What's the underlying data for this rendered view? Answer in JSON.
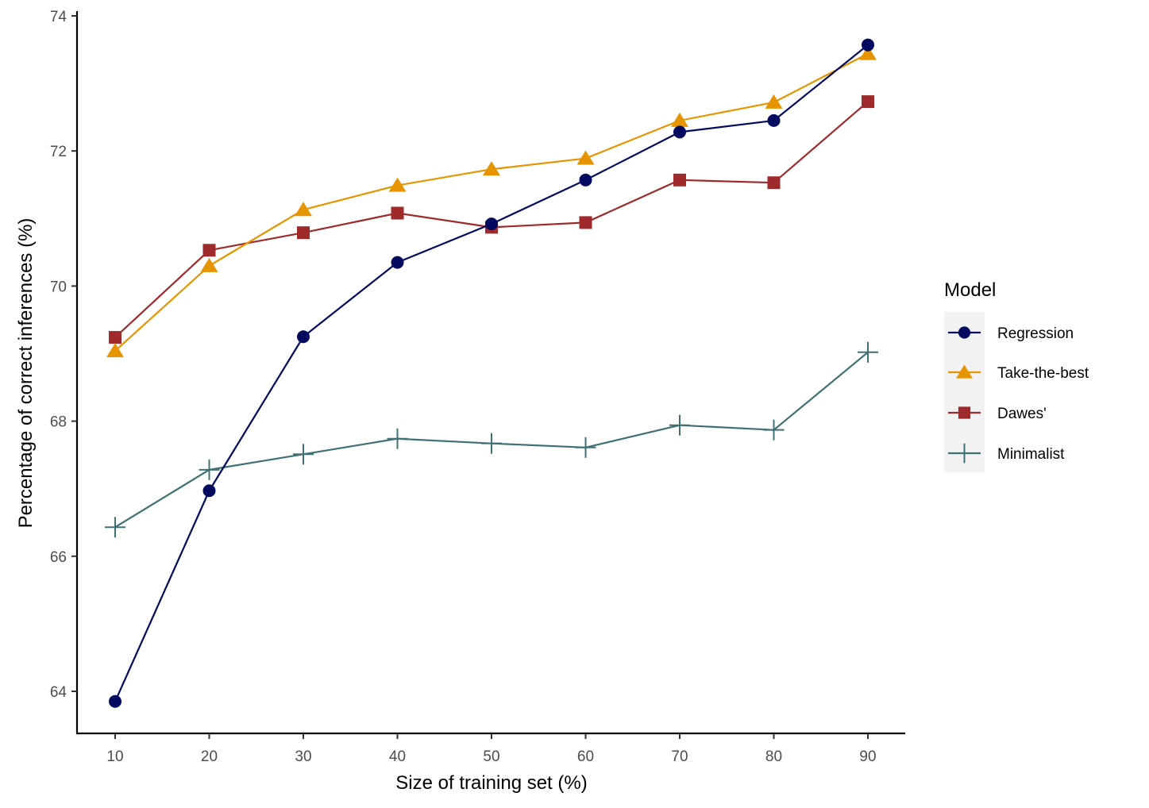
{
  "chart_data": {
    "type": "line",
    "title": "",
    "xlabel": "Size of training set (%)",
    "ylabel": "Percentage of correct inferences (%)",
    "x": [
      10,
      20,
      30,
      40,
      50,
      60,
      70,
      80,
      90
    ],
    "xticks": [
      "10",
      "20",
      "30",
      "40",
      "50",
      "60",
      "70",
      "80",
      "90"
    ],
    "yticks": [
      "64",
      "66",
      "68",
      "70",
      "72",
      "74"
    ],
    "ytick_values": [
      64,
      66,
      68,
      70,
      72,
      74
    ],
    "xlim": [
      6,
      94
    ],
    "ylim": [
      63.4,
      74.0
    ],
    "grid": false,
    "legend": {
      "title": "Model",
      "position": "right"
    },
    "series": [
      {
        "name": "Regression",
        "color": "#000A5E",
        "marker": "circle",
        "values": [
          63.85,
          66.97,
          69.25,
          70.35,
          70.92,
          71.57,
          72.28,
          72.45,
          73.57
        ]
      },
      {
        "name": "Take-the-best",
        "color": "#E69500",
        "marker": "triangle",
        "values": [
          69.04,
          70.3,
          71.13,
          71.49,
          71.73,
          71.89,
          72.45,
          72.72,
          73.44
        ]
      },
      {
        "name": "Dawes'",
        "color": "#9E2A2B",
        "marker": "square",
        "values": [
          69.24,
          70.53,
          70.79,
          71.08,
          70.87,
          70.94,
          71.57,
          71.53,
          72.73
        ]
      },
      {
        "name": "Minimalist",
        "color": "#3F7073",
        "marker": "plus",
        "values": [
          66.43,
          67.28,
          67.51,
          67.74,
          67.67,
          67.61,
          67.94,
          67.87,
          69.02
        ]
      }
    ]
  }
}
